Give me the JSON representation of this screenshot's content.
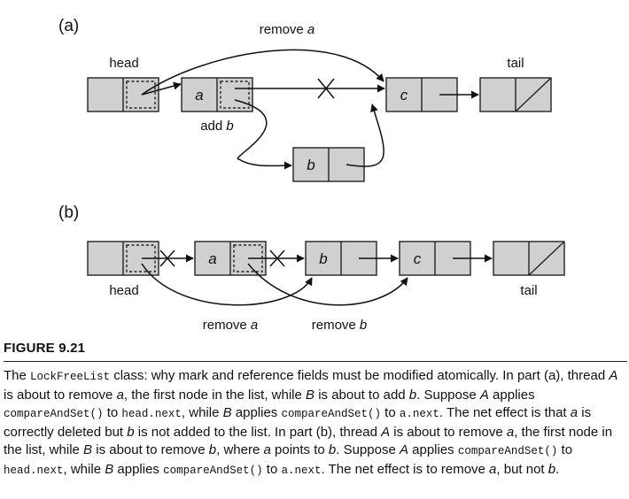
{
  "diagram": {
    "part_a": {
      "label": "(a)",
      "head_label": "head",
      "tail_label": "tail",
      "node_a": "a",
      "node_b": "b",
      "node_c": "c",
      "remove_label": {
        "prefix": "remove ",
        "var": "a"
      },
      "add_label": {
        "prefix": "add ",
        "var": "b"
      }
    },
    "part_b": {
      "label": "(b)",
      "head_label": "head",
      "tail_label": "tail",
      "node_a": "a",
      "node_b": "b",
      "node_c": "c",
      "remove_a_label": {
        "prefix": "remove ",
        "var": "a"
      },
      "remove_b_label": {
        "prefix": "remove ",
        "var": "b"
      }
    }
  },
  "figure": {
    "title": "FIGURE 9.21",
    "caption": {
      "s1": "The ",
      "c1": "LockFreeList",
      "s2": " class: why mark and reference fields must be modified atomically. In part (a), thread ",
      "i1": "A",
      "s3": " is about to remove ",
      "i2": "a",
      "s4": ", the first node in the list, while ",
      "i3": "B",
      "s5": " is about to add ",
      "i4": "b",
      "s6": ". Suppose ",
      "i5": "A",
      "s7": " applies ",
      "c2": "compareAndSet()",
      "s8": " to ",
      "c3": "head.next",
      "s9": ", while ",
      "i6": "B",
      "s10": " applies ",
      "c4": "compareAndSet()",
      "s11": " to ",
      "c5": "a.next",
      "s12": ". The net effect is that ",
      "i7": "a",
      "s13": " is correctly deleted but ",
      "i8": "b",
      "s14": " is not added to the list. In part (b), thread ",
      "i9": "A",
      "s15": " is about to remove ",
      "i10": "a",
      "s16": ", the first node in the list, while ",
      "i11": "B",
      "s17": " is about to remove ",
      "i12": "b",
      "s18": ", where ",
      "i13": "a",
      "s19": " points to ",
      "i14": "b",
      "s20": ". Suppose ",
      "i15": "A",
      "s21": " applies ",
      "c6": "compareAndSet()",
      "s22": " to ",
      "c7": "head.next",
      "s23": ", while ",
      "i16": "B",
      "s24": " applies ",
      "c8": "compareAndSet()",
      "s25": " to ",
      "c9": "a.next",
      "s26": ". The net effect is to remove ",
      "i17": "a",
      "s27": ", but not ",
      "i18": "b",
      "s28": "."
    }
  }
}
